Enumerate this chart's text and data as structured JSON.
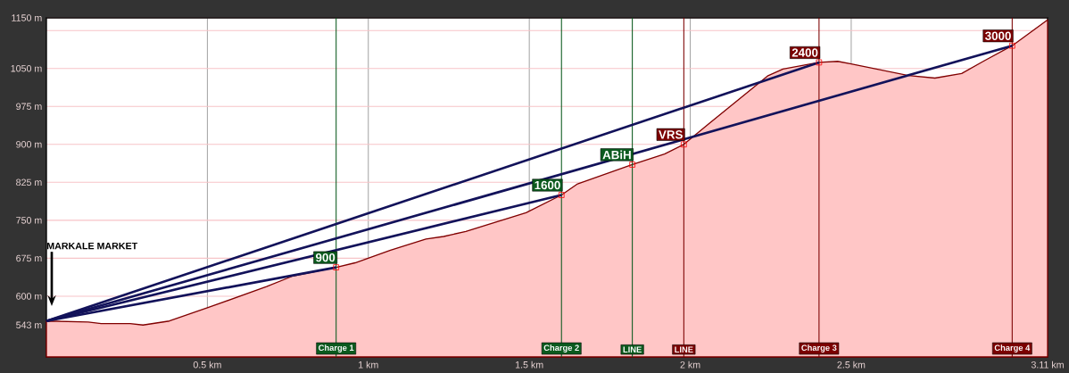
{
  "chart_data": {
    "type": "area",
    "x": [
      0,
      0.13,
      0.17,
      0.26,
      0.3,
      0.382,
      0.5,
      0.684,
      0.766,
      0.9,
      0.959,
      1.069,
      1.179,
      1.234,
      1.303,
      1.49,
      1.6,
      1.65,
      1.82,
      1.92,
      1.98,
      2.06,
      2.24,
      2.288,
      2.4,
      2.458,
      2.5,
      2.678,
      2.76,
      2.843,
      2.91,
      3.0,
      3.11
    ],
    "series": [
      {
        "color": "#800000",
        "values": [
          551,
          549,
          546,
          546,
          543,
          551,
          577,
          619,
          640,
          657,
          666,
          691,
          713,
          718,
          728,
          765,
          800,
          822,
          860,
          881,
          900,
          942,
          1035,
          1049,
          1062,
          1064,
          1059,
          1036,
          1031,
          1040,
          1064,
          1095,
          1146
        ]
      },
      {
        "type": "line",
        "color": "#12125a",
        "x": [
          0,
          0.9
        ],
        "values": [
          551,
          657
        ]
      },
      {
        "type": "line",
        "color": "#12125a",
        "x": [
          0,
          1.6
        ],
        "values": [
          551,
          800
        ]
      },
      {
        "type": "line",
        "color": "#12125a",
        "x": [
          0,
          2.4
        ],
        "values": [
          551,
          1062
        ]
      },
      {
        "type": "line",
        "color": "#12125a",
        "x": [
          0,
          3.0
        ],
        "values": [
          551,
          1095
        ]
      }
    ],
    "xlim": [
      0,
      3.11
    ],
    "xticks": [
      {
        "value": 0.5,
        "label": "0.5 km"
      },
      {
        "value": 1,
        "label": "1 km"
      },
      {
        "value": 1.5,
        "label": "1.5 km"
      },
      {
        "value": 2,
        "label": "2 km"
      },
      {
        "value": 2.5,
        "label": "2.5 km"
      },
      {
        "value": 3.11,
        "label": "3.11 km"
      }
    ],
    "ylim": [
      480,
      1150
    ],
    "yticks": [
      {
        "value": 543,
        "label": "543 m"
      },
      {
        "value": 600,
        "label": "600 m"
      },
      {
        "value": 675,
        "label": "675 m"
      },
      {
        "value": 750,
        "label": "750 m"
      },
      {
        "value": 825,
        "label": "825 m"
      },
      {
        "value": 900,
        "label": "900 m"
      },
      {
        "value": 975,
        "label": "975 m"
      },
      {
        "value": 1050,
        "label": "1050 m"
      },
      {
        "value": 1125,
        "label": null
      },
      {
        "value": 1150,
        "label": "1150 m"
      }
    ],
    "grid": true,
    "ref_lines": [
      {
        "axis": "x",
        "value": 0.9,
        "label": "Charge 1",
        "color": "#0b5a1e"
      },
      {
        "axis": "x",
        "value": 1.6,
        "label": "Charge 2",
        "color": "#0b5a1e"
      },
      {
        "axis": "x",
        "value": 1.82,
        "label": "LINE",
        "color": "#0b5a1e"
      },
      {
        "axis": "x",
        "value": 1.98,
        "label": "LINE",
        "color": "#7b0000"
      },
      {
        "axis": "x",
        "value": 2.4,
        "label": "Charge 3",
        "color": "#7b0000"
      },
      {
        "axis": "x",
        "value": 3.0,
        "label": "Charge 4",
        "color": "#7b0000"
      }
    ],
    "annotations": [
      "MARKALE MARKET",
      {
        "text": "900",
        "x": 0.9,
        "y": 657
      },
      {
        "text": "1600",
        "x": 1.6,
        "y": 800
      },
      {
        "text": "ABiH",
        "x": 1.82,
        "y": 860
      },
      {
        "text": "VRS",
        "x": 1.98,
        "y": 900
      },
      {
        "text": "2400",
        "x": 2.4,
        "y": 1062
      },
      {
        "text": "3000",
        "x": 3.0,
        "y": 1095
      }
    ]
  }
}
